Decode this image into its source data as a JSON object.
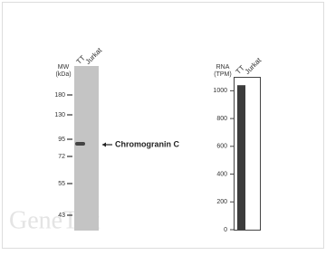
{
  "blot": {
    "mw_label": [
      "MW",
      "(kDa)"
    ],
    "lanes": [
      "TT",
      "Jurkat"
    ],
    "markers": [
      180,
      130,
      95,
      72,
      55,
      43
    ],
    "band_label": "Chromogranin C"
  },
  "rna": {
    "label": [
      "RNA",
      "(TPM)"
    ],
    "lanes": [
      "TT",
      "Jurkat"
    ],
    "values": [
      1040,
      0
    ],
    "ylim": [
      0,
      1100
    ],
    "yticks": [
      0,
      200,
      400,
      600,
      800,
      1000
    ]
  },
  "watermark": "GeneTex"
}
